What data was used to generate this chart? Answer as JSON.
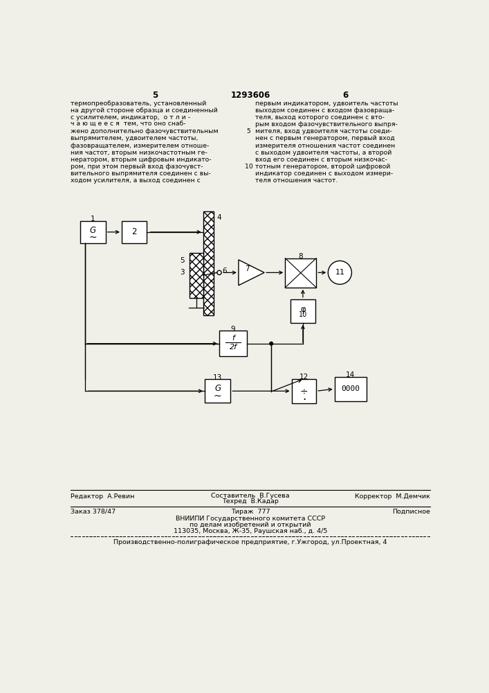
{
  "page_number_left": "5",
  "page_number_center": "1293606",
  "page_number_right": "6",
  "text_left": "термопреобразователь, установленный\nна другой стороне образца и соединенный\nс усилителем, индикатор,  о т л и -\nч а ю щ е е с я  тем, что оно снаб-\nжено дополнительно фазочувствительным\nвыпрямителем, удвоителем частоты,\nфазовращателем, измерителем отноше-\nния частот, вторым низкочастотным ге-\nнератором, вторым цифровым индикато-\nром, при этом первый вход фазочувст-\nвительного выпрямителя соединен с вы-\nходом усилителя, а выход соединен с",
  "text_right": "первым индикатором, удвоитель частоты\nвыходом соединен с входом фазовраща-\nтеля, выход которого соединен с вто-\nрым входом фазочувствительного выпря-\nмителя, вход удвоителя частоты соеди-\nнен с первым генератором, первый вход\nизмерителя отношения частот соединен\nс выходом удвоителя частоты, а второй\nвход его соединен с вторым низкочас-\nтотным генератором, второй цифровой\nиндикатор соединен с выходом измери-\nтеля отношения частот.",
  "editor_label": "Редактор  А.Ревин",
  "composer_label": "Составитель  В.Гусева",
  "techred_label": "Техред  В.Кадар",
  "corrector_label": "Корректор  М.Демчик",
  "order_label": "Заказ 378/47",
  "tirazh_label": "Тираж  777",
  "podpisnoe_label": "Подписное",
  "vniiipi_line1": "ВНИИПИ Государственного комитета СССР",
  "vniiipi_line2": "по делам изобретений и открытий",
  "vniiipi_line3": "113035, Москва, Ж-35, Раушская наб., д. 4/5",
  "production_line": "Производственно-полиграфическое предприятие, г.Ужгород, ул.Проектная, 4",
  "bg_color": "#f0efe8"
}
